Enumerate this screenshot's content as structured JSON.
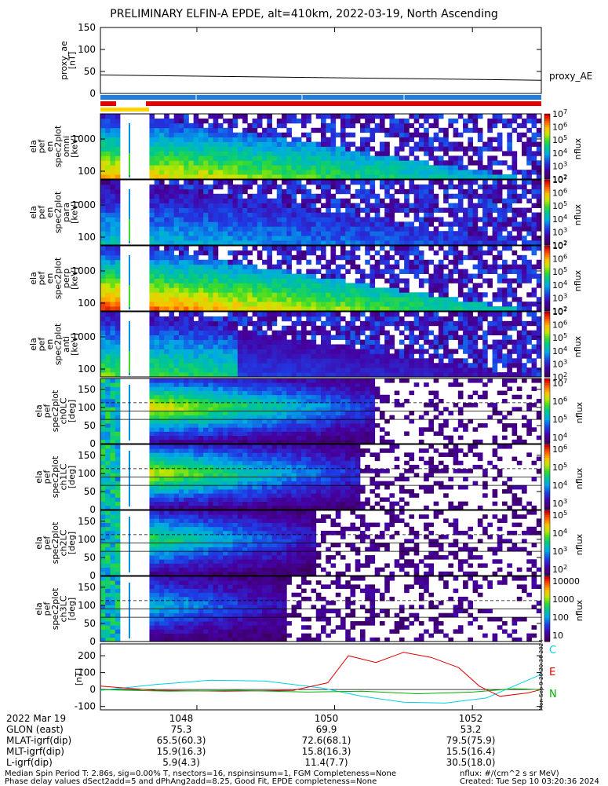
{
  "title": "PRELIMINARY ELFIN-A EPDE, alt=410km, 2022-03-19, North Ascending",
  "colors": {
    "ae_line": "#000000",
    "bar_blue": "#1f7fe0",
    "bar_red": "#e60000",
    "bar_yellow": "#ffd400",
    "dB_C": "#00d0e0",
    "dB_E": "#e00000",
    "dB_N": "#00b000"
  },
  "panels": {
    "ae": {
      "ylabel": "proxy_ae\n[nT]",
      "yticks": [
        "0",
        "50",
        "100",
        "150"
      ],
      "right_label": "proxy_AE"
    },
    "spec": [
      {
        "ylabel": "ela\npef\nen\nspec2plot\nomni\n[keV]",
        "yticks": [
          "100",
          "1000"
        ],
        "cbar_ticks": [
          "10^2",
          "10^3",
          "10^4",
          "10^5",
          "10^6",
          "10^7"
        ],
        "cbar_label": "nflux"
      },
      {
        "ylabel": "ela\npef\nen\nspec2plot\npara\n[keV]",
        "yticks": [
          "100",
          "1000"
        ],
        "cbar_ticks": [
          "10^2",
          "10^3",
          "10^4",
          "10^5",
          "10^6",
          "10^7"
        ],
        "cbar_label": "nflux"
      },
      {
        "ylabel": "ela\npef\nen\nspec2plot\nperp\n[keV]",
        "yticks": [
          "100",
          "1000"
        ],
        "cbar_ticks": [
          "10^2",
          "10^3",
          "10^4",
          "10^5",
          "10^6",
          "10^7"
        ],
        "cbar_label": "nflux"
      },
      {
        "ylabel": "ela\npef\nen\nspec2plot\nanti\n[keV]",
        "yticks": [
          "100",
          "1000"
        ],
        "cbar_ticks": [
          "10^2",
          "10^3",
          "10^4",
          "10^5",
          "10^6",
          "10^7"
        ],
        "cbar_label": "nflux"
      }
    ],
    "pa": [
      {
        "ylabel": "ela\npef\nspec2plot\nch0LC\n[deg]",
        "yticks": [
          "0",
          "50",
          "100",
          "150"
        ],
        "cbar_ticks": [
          "10^4",
          "10^5",
          "10^6",
          "10^7"
        ],
        "cbar_label": "nflux"
      },
      {
        "ylabel": "ela\npef\nspec2plot\nch1LC\n[deg]",
        "yticks": [
          "0",
          "50",
          "100",
          "150"
        ],
        "cbar_ticks": [
          "10^3",
          "10^4",
          "10^5",
          "10^6"
        ],
        "cbar_label": "nflux"
      },
      {
        "ylabel": "ela\npef\nspec2plot\nch2LC\n[deg]",
        "yticks": [
          "0",
          "50",
          "100",
          "150"
        ],
        "cbar_ticks": [
          "10^2",
          "10^3",
          "10^4",
          "10^5"
        ],
        "cbar_label": "nflux"
      },
      {
        "ylabel": "ela\npef\nspec2plot\nch3LC\n[deg]",
        "yticks": [
          "0",
          "50",
          "100",
          "150"
        ],
        "cbar_ticks": [
          "10",
          "100",
          "1000",
          "10000"
        ],
        "cbar_label": "nflux"
      }
    ],
    "db": {
      "ylabel": "[nT]",
      "yticks": [
        "-100",
        "0",
        "100",
        "200"
      ],
      "legend": [
        "C",
        "E",
        "N"
      ]
    }
  },
  "chart_data": [
    {
      "type": "line",
      "name": "proxy_ae",
      "x_minutes": [
        1046.6,
        1053.0
      ],
      "y": [
        42,
        30
      ],
      "ylim": [
        0,
        150
      ]
    },
    {
      "type": "line",
      "name": "dB",
      "series": [
        {
          "name": "C",
          "x": [
            1046.6,
            1047.4,
            1048.2,
            1049.0,
            1049.8,
            1050.4,
            1051.0,
            1051.6,
            1052.2,
            1052.6,
            1053.0
          ],
          "y": [
            -5,
            30,
            55,
            50,
            10,
            -40,
            -75,
            -80,
            -50,
            20,
            90
          ]
        },
        {
          "name": "E",
          "x": [
            1046.6,
            1047.4,
            1048.4,
            1049.4,
            1049.9,
            1050.2,
            1050.6,
            1051.0,
            1051.4,
            1051.8,
            1052.1,
            1052.4,
            1052.8,
            1053.0
          ],
          "y": [
            20,
            -5,
            -10,
            -5,
            40,
            200,
            160,
            220,
            190,
            130,
            20,
            -40,
            -20,
            0
          ]
        },
        {
          "name": "N",
          "x": [
            1046.6,
            1047.6,
            1048.6,
            1049.6,
            1050.4,
            1051.2,
            1052.0,
            1052.6,
            1053.0
          ],
          "y": [
            0,
            -10,
            -5,
            -15,
            -10,
            -25,
            -15,
            5,
            0
          ]
        }
      ],
      "ylim": [
        -120,
        270
      ]
    }
  ],
  "orbit": {
    "labels": [
      "2022 Mar 19",
      "GLON (east)",
      "MLAT-igrf(dip)",
      "MLT-igrf(dip)",
      "L-igrf(dip)"
    ],
    "times": [
      "1048",
      "1050",
      "1052"
    ],
    "columns": [
      [
        "75.3",
        "65.5(60.3)",
        "15.9(16.3)",
        "5.9(4.3)"
      ],
      [
        "69.9",
        "72.6(68.1)",
        "15.8(16.3)",
        "11.4(7.7)"
      ],
      [
        "53.2",
        "79.5(75.9)",
        "15.5(16.4)",
        "30.5(18.0)"
      ]
    ]
  },
  "footer": {
    "line1": "Median Spin Period T: 2.86s, sig=0.00% T, nsectors=16, nspinsinsum=1, FGM Completeness=None",
    "line2": "Phase delay values dSect2add=5 and dPhAng2add=8.25, Good Fit, EPDE completeness=None",
    "units": "nflux: #/(cm^2 s sr MeV)",
    "created": "Created: Tue Sep 10 03:20:36 2024",
    "side_stamp": "Mon Sep 9 20:20:36 2024"
  }
}
